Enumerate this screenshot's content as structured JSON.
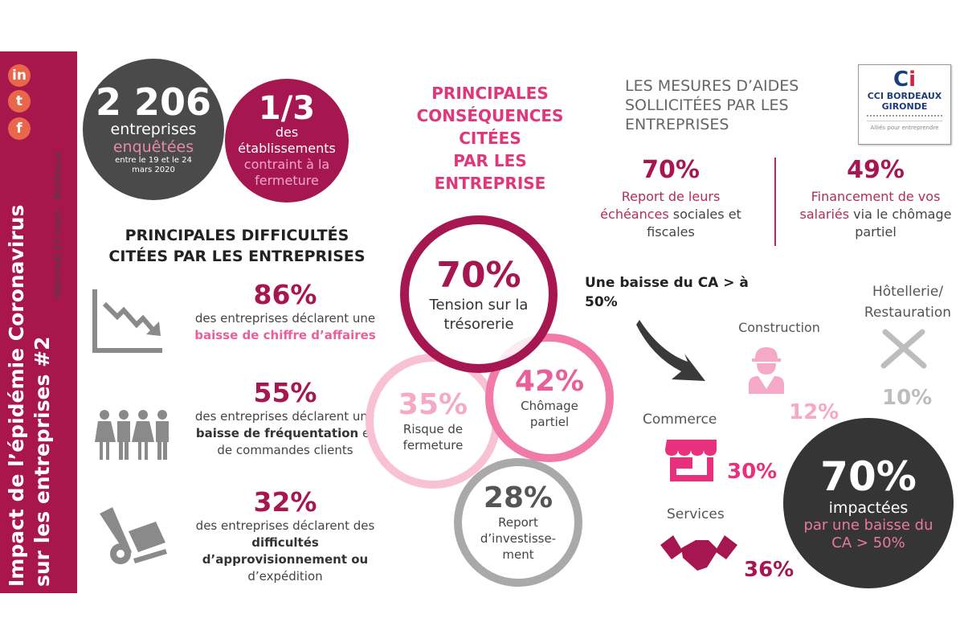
{
  "sidebar": {
    "title_line1": "Impact de l’épidémie Coronavirus",
    "title_line2": "sur les entreprises #2",
    "subtitle": "Mercredi 25 mars - Bordeaux",
    "social": [
      {
        "icon": "linkedin-icon",
        "label": "in"
      },
      {
        "icon": "twitter-icon",
        "label": "t"
      },
      {
        "icon": "facebook-icon",
        "label": "f"
      }
    ]
  },
  "summary": {
    "count": "2 206",
    "count_label": "entreprises",
    "count_label2": "enquêtées",
    "count_dates": "entre le 19 et le 24 mars 2020",
    "share": "1/3",
    "share_l1": "des",
    "share_l2": "établissements",
    "share_l3": "contraint à la",
    "share_l4": "fermeture"
  },
  "difficulties": {
    "heading_l1": "PRINCIPALES DIFFICULTÉS",
    "heading_l2": "CITÉES PAR LES ENTREPRISES",
    "items": [
      {
        "pct": "86%",
        "pre": "des entreprises déclarent une ",
        "strong": "baisse de chiffre d’affaires",
        "post": "",
        "icon": "declining-chart-icon"
      },
      {
        "pct": "55%",
        "pre": "des entreprises déclarent une ",
        "strong": "baisse de fréquentation",
        "post": " et de commandes clients",
        "icon": "people-icon"
      },
      {
        "pct": "32%",
        "pre": "des entreprises déclarent des ",
        "strong": "difficultés d’approvisionnement ou",
        "post": " d’expédition",
        "icon": "hand-truck-icon"
      }
    ]
  },
  "consequences": {
    "heading": [
      "PRINCIPALES",
      "CONSÉQUENCES",
      "CITÉES",
      "PAR LES",
      "ENTREPRISE"
    ],
    "items": [
      {
        "pct": "70%",
        "label": "Tension sur la trésorerie",
        "color": "#a61650"
      },
      {
        "pct": "42%",
        "label": "Chômage partiel",
        "color": "#f07aa8"
      },
      {
        "pct": "35%",
        "label": "Risque de fermeture",
        "color": "#f9c1d5"
      },
      {
        "pct": "28%",
        "label": "Report d’investisse-ment",
        "color": "#a9a9a9"
      }
    ]
  },
  "aids": {
    "heading": "LES MESURES D’AIDES SOLLICITÉES PAR LES ENTREPRISES",
    "items": [
      {
        "pct": "70%",
        "highlight": "Report de leurs échéances",
        "rest": " sociales et fiscales"
      },
      {
        "pct": "49%",
        "highlight": "Financement de vos salariés",
        "rest": " via le chômage partiel"
      }
    ]
  },
  "logo": {
    "line1": "CCI BORDEAUX",
    "line2": "GIRONDE",
    "tagline": "Alliés pour entreprendre"
  },
  "revenue_drop": {
    "heading": "Une baisse du CA > à 50%",
    "sectors": [
      {
        "name": "Construction",
        "pct": "12%",
        "icon": "construction-worker-icon",
        "color": "#f6a9c6"
      },
      {
        "name": "Hôtellerie/ Restauration",
        "pct": "10%",
        "icon": "fork-knife-icon",
        "color": "#bdbdbd"
      },
      {
        "name": "Commerce",
        "pct": "30%",
        "icon": "shop-icon",
        "color": "#e8307d"
      },
      {
        "name": "Services",
        "pct": "36%",
        "icon": "handshake-icon",
        "color": "#a61650"
      }
    ],
    "total_pct": "70%",
    "total_l1": "impactées",
    "total_l2": "par une baisse du CA > 50%"
  }
}
